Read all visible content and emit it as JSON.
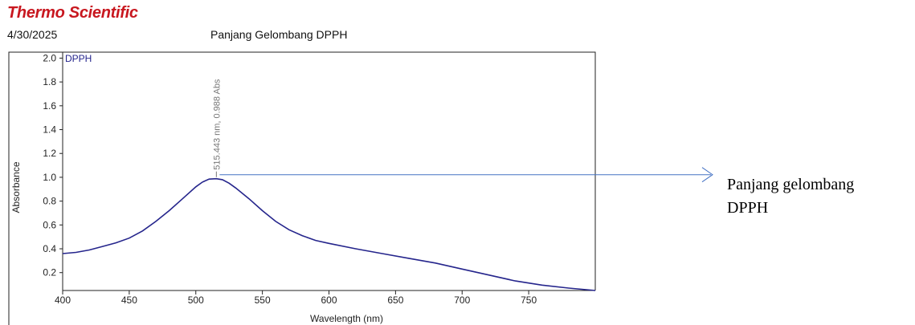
{
  "header": {
    "brand": "Thermo Scientific",
    "date": "4/30/2025"
  },
  "colors": {
    "brand": "#c8171f",
    "series": "#25258c",
    "frame": "#222222",
    "annotation": "#777777",
    "callout_arrow": "#4472c4"
  },
  "callout": {
    "line1": "Panjang gelombang",
    "line2": "DPPH"
  },
  "chart_data": {
    "type": "line",
    "title": "Panjang Gelombang DPPH",
    "xlabel": "Wavelength (nm)",
    "ylabel": "Absorbance",
    "xlim": [
      400,
      800
    ],
    "ylim": [
      0.05,
      2.05
    ],
    "xticks": [
      400,
      450,
      500,
      550,
      600,
      650,
      700,
      750
    ],
    "yticks": [
      0.2,
      0.4,
      0.6,
      0.8,
      1.0,
      1.2,
      1.4,
      1.6,
      1.8,
      2.0
    ],
    "grid": false,
    "series": [
      {
        "name": "DPPH",
        "x": [
          400,
          410,
          420,
          430,
          440,
          450,
          460,
          470,
          480,
          490,
          500,
          505,
          510,
          515.443,
          520,
          525,
          530,
          540,
          550,
          560,
          570,
          580,
          590,
          600,
          620,
          640,
          660,
          680,
          700,
          720,
          740,
          760,
          780,
          800
        ],
        "y": [
          0.36,
          0.37,
          0.39,
          0.42,
          0.45,
          0.49,
          0.55,
          0.63,
          0.72,
          0.82,
          0.92,
          0.96,
          0.985,
          0.988,
          0.98,
          0.95,
          0.91,
          0.82,
          0.72,
          0.63,
          0.56,
          0.51,
          0.47,
          0.445,
          0.4,
          0.36,
          0.32,
          0.28,
          0.23,
          0.18,
          0.13,
          0.095,
          0.07,
          0.05
        ]
      }
    ],
    "peak_annotation": {
      "x": 515.443,
      "y": 0.988,
      "label": "515.443 nm, 0.988 Abs"
    }
  }
}
